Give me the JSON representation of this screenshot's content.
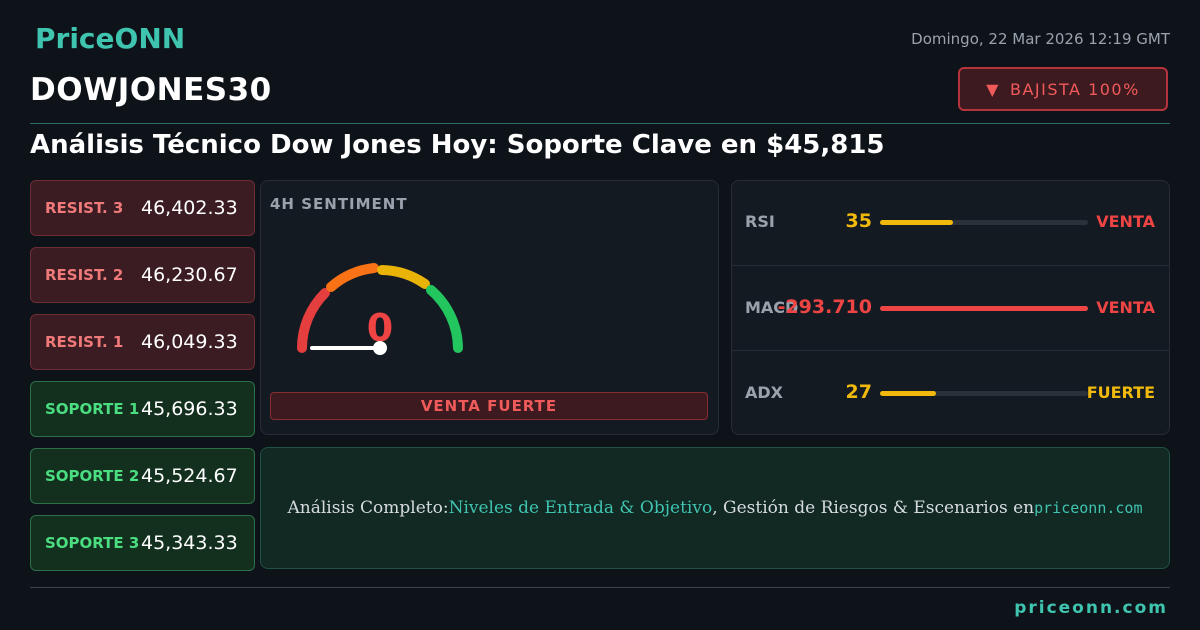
{
  "header": {
    "brand": "PriceONN",
    "date": "Domingo, 22 Mar 2026 12:19 GMT",
    "symbol": "DOWJONES30",
    "badge": "BAJISTA 100%",
    "title": "Análisis Técnico Dow Jones Hoy: Soporte Clave en $45,815"
  },
  "levels": [
    {
      "kind": "resistance",
      "label": "RESIST. 3",
      "value": "46,402.33"
    },
    {
      "kind": "resistance",
      "label": "RESIST. 2",
      "value": "46,230.67"
    },
    {
      "kind": "resistance",
      "label": "RESIST. 1",
      "value": "46,049.33"
    },
    {
      "kind": "support",
      "label": "SOPORTE 1",
      "value": "45,696.33"
    },
    {
      "kind": "support",
      "label": "SOPORTE 2",
      "value": "45,524.67"
    },
    {
      "kind": "support",
      "label": "SOPORTE 3",
      "value": "45,343.33"
    }
  ],
  "sentiment": {
    "title": "4H SENTIMENT",
    "score": 0,
    "label": "VENTA FUERTE"
  },
  "indicators": [
    {
      "name": "RSI",
      "value": 35,
      "signal": "VENTA",
      "tone": "yellow",
      "signal_tone": "red"
    },
    {
      "name": "MACD",
      "value": "-293.710",
      "signal": "VENTA",
      "tone": "red",
      "signal_tone": "red"
    },
    {
      "name": "ADX",
      "value": 27,
      "signal": "FUERTE",
      "tone": "yellow",
      "signal_tone": "yellow"
    }
  ],
  "cta": {
    "prefix": "Análisis Completo:",
    "link": "Niveles de Entrada & Objetivo",
    "middle": ", Gestión de Riesgos & Escenarios en",
    "site": "priceonn.com"
  },
  "footer": "priceonn.com"
}
